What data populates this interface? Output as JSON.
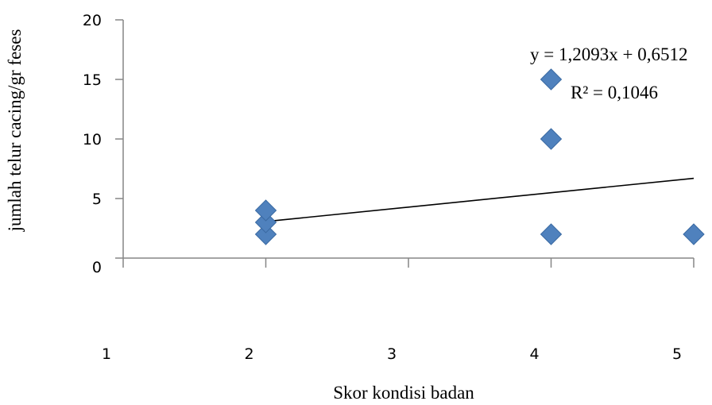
{
  "chart_data": {
    "type": "scatter",
    "title": "",
    "xlabel": "Skor kondisi badan",
    "ylabel": "jumlah telur cacing/gr feses",
    "xlim": [
      1,
      5
    ],
    "ylim": [
      0,
      20
    ],
    "x_ticks": [
      1,
      2,
      3,
      4,
      5
    ],
    "y_ticks": [
      0,
      5,
      10,
      15,
      20
    ],
    "grid": false,
    "legend": "none",
    "marker": "diamond",
    "marker_color": "#4F81BD",
    "series": [
      {
        "points": [
          {
            "x": 2,
            "y": 2
          },
          {
            "x": 2,
            "y": 3
          },
          {
            "x": 2,
            "y": 4
          },
          {
            "x": 4,
            "y": 2
          },
          {
            "x": 4,
            "y": 10
          },
          {
            "x": 4,
            "y": 15
          },
          {
            "x": 5,
            "y": 2
          }
        ]
      }
    ],
    "trendline": {
      "type": "linear",
      "slope": 1.2093,
      "intercept": 0.6512,
      "x_range": [
        2,
        5
      ],
      "equation": "y = 1,2093x + 0,6512",
      "r_squared": "R² = 0,1046"
    }
  }
}
